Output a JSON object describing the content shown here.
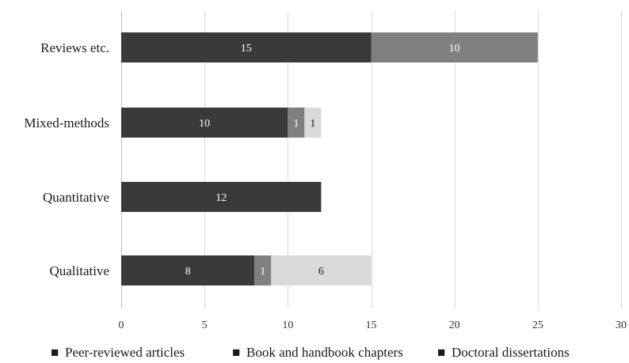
{
  "chart_data": {
    "type": "bar",
    "orientation": "horizontal",
    "stacked": true,
    "title": "",
    "xlabel": "",
    "ylabel": "",
    "categories": [
      "Reviews etc.",
      "Mixed-methods",
      "Quantitative",
      "Qualitative"
    ],
    "series": [
      {
        "name": "Peer-reviewed articles",
        "values": [
          15,
          10,
          12,
          8
        ],
        "color": "#3a3a3a",
        "label_color": "#ffffff"
      },
      {
        "name": "Book and handbook chapters",
        "values": [
          10,
          1,
          0,
          1
        ],
        "color": "#808080",
        "label_color": "#ffffff"
      },
      {
        "name": "Doctoral dissertations",
        "values": [
          0,
          1,
          0,
          6
        ],
        "color": "#d9d9d9",
        "label_color": "#1a1a1a"
      }
    ],
    "xlim": [
      0,
      30
    ],
    "xticks": [
      0,
      5,
      10,
      15,
      20,
      25,
      30
    ],
    "grid": "vertical",
    "legend_position": "bottom",
    "legend_marker": "■"
  }
}
